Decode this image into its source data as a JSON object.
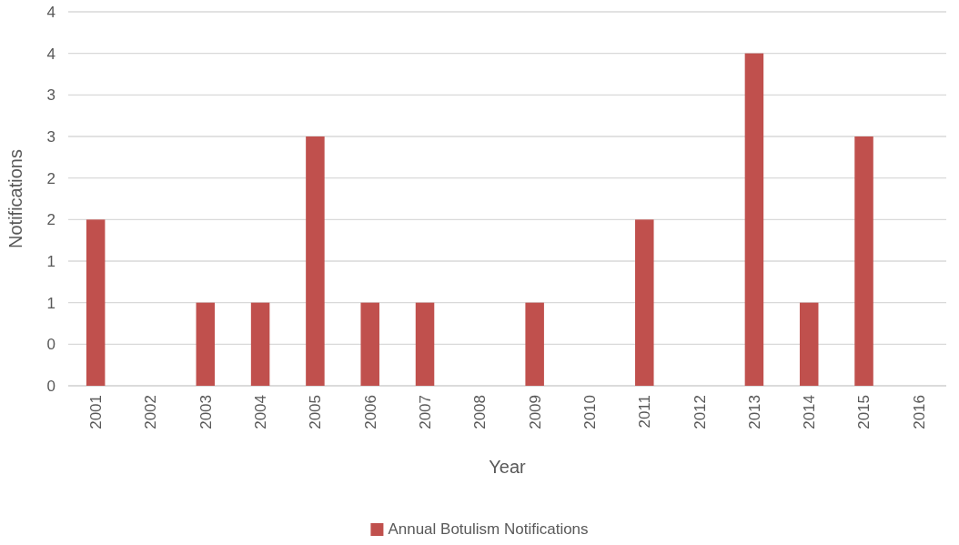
{
  "chart_data": {
    "type": "bar",
    "xlabel": "Year",
    "ylabel": "Notifications",
    "categories": [
      "2001",
      "2002",
      "2003",
      "2004",
      "2005",
      "2006",
      "2007",
      "2008",
      "2009",
      "2010",
      "2011",
      "2012",
      "2013",
      "2014",
      "2015",
      "2016"
    ],
    "series": [
      {
        "name": "Annual Botulism Notifications",
        "color": "#c0504d",
        "values": [
          2,
          0,
          1,
          1,
          3,
          1,
          1,
          0,
          1,
          0,
          2,
          0,
          4,
          1,
          3,
          0
        ]
      }
    ],
    "ylim": [
      0,
      4.5
    ],
    "yticks": [
      0,
      {
        "value": 0.5,
        "label": "0"
      },
      1,
      {
        "value": 1.5,
        "label": "1"
      },
      2,
      {
        "value": 2.5,
        "label": "2"
      },
      3,
      {
        "value": 3.5,
        "label": "3"
      },
      4,
      {
        "value": 4.5,
        "label": "4"
      }
    ],
    "grid": "y",
    "legend": "bottom"
  }
}
